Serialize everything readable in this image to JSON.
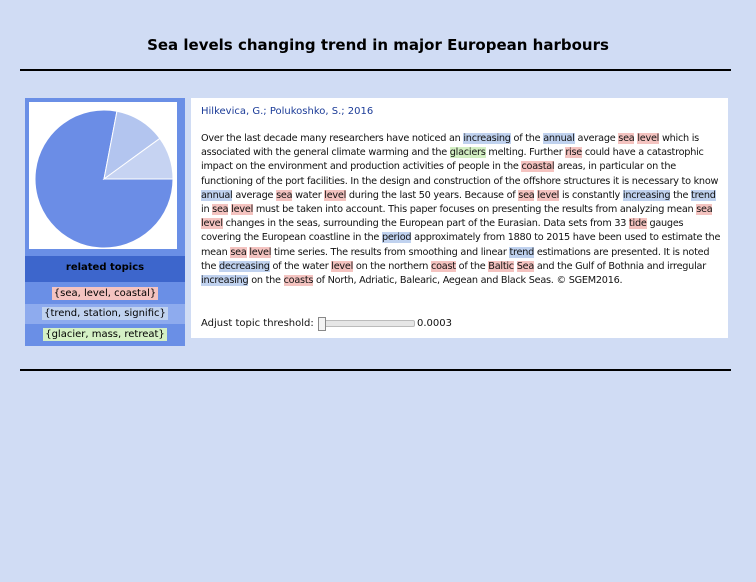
{
  "header": {
    "title": "Sea levels changing trend in major European harbours"
  },
  "sidebar": {
    "pie": {
      "colors": {
        "main": "#6b8de6",
        "mid": "#b3c5ef",
        "small": "#c6d3f2"
      },
      "slices": [
        0.78,
        0.12,
        0.1
      ]
    },
    "topics_label": "related topics",
    "topics": [
      {
        "label": "{sea, level, coastal}"
      },
      {
        "label": "{trend, station, signific}"
      },
      {
        "label": "{glacier, mass, retreat}"
      }
    ]
  },
  "paper": {
    "authors": "Hilkevica, G.; Polukoshko, S.; 2016",
    "abstract": [
      {
        "t": "Over the last decade many researchers have noticed an "
      },
      {
        "t": "increasing",
        "h": "b"
      },
      {
        "t": " of the "
      },
      {
        "t": "annual",
        "h": "b"
      },
      {
        "t": " average "
      },
      {
        "t": "sea",
        "h": "r"
      },
      {
        "t": " "
      },
      {
        "t": "level",
        "h": "r"
      },
      {
        "t": " which is associated with the general climate warming and the "
      },
      {
        "t": "glaciers",
        "h": "g"
      },
      {
        "t": " melting. Further "
      },
      {
        "t": "rise",
        "h": "r"
      },
      {
        "t": " could have a catastrophic impact on the environment and production activities of people in the "
      },
      {
        "t": "coastal",
        "h": "r"
      },
      {
        "t": " areas, in particular on the functioning of the port facilities. In the design and construction of the offshore structures it is necessary to know "
      },
      {
        "t": "annual",
        "h": "b"
      },
      {
        "t": " average "
      },
      {
        "t": "sea",
        "h": "r"
      },
      {
        "t": " water "
      },
      {
        "t": "level",
        "h": "r"
      },
      {
        "t": " during the last 50 years. Because of "
      },
      {
        "t": "sea",
        "h": "r"
      },
      {
        "t": " "
      },
      {
        "t": "level",
        "h": "r"
      },
      {
        "t": " is constantly "
      },
      {
        "t": "increasing",
        "h": "b"
      },
      {
        "t": " the "
      },
      {
        "t": "trend",
        "h": "b"
      },
      {
        "t": " in "
      },
      {
        "t": "sea",
        "h": "r"
      },
      {
        "t": " "
      },
      {
        "t": "level",
        "h": "r"
      },
      {
        "t": " must be taken into account. This paper focuses on presenting the results from analyzing mean "
      },
      {
        "t": "sea",
        "h": "r"
      },
      {
        "t": " "
      },
      {
        "t": "level",
        "h": "r"
      },
      {
        "t": " changes in the seas, surrounding the European part of the Eurasian. Data sets from 33 "
      },
      {
        "t": "tide",
        "h": "r"
      },
      {
        "t": " gauges covering the European coastline in the "
      },
      {
        "t": "period",
        "h": "b"
      },
      {
        "t": " approximately from 1880 to 2015 have been used to estimate the mean "
      },
      {
        "t": "sea",
        "h": "r"
      },
      {
        "t": " "
      },
      {
        "t": "level",
        "h": "r"
      },
      {
        "t": " time series. The results from smoothing and linear "
      },
      {
        "t": "trend",
        "h": "b"
      },
      {
        "t": " estimations are presented. It is noted the "
      },
      {
        "t": "decreasing",
        "h": "b"
      },
      {
        "t": " of the water "
      },
      {
        "t": "level",
        "h": "r"
      },
      {
        "t": " on the northern "
      },
      {
        "t": "coast",
        "h": "r"
      },
      {
        "t": " of the "
      },
      {
        "t": "Baltic",
        "h": "r"
      },
      {
        "t": " "
      },
      {
        "t": "Sea",
        "h": "r"
      },
      {
        "t": " and the Gulf of Bothnia and irregular "
      },
      {
        "t": "increasing",
        "h": "b"
      },
      {
        "t": " on the "
      },
      {
        "t": "coasts",
        "h": "r"
      },
      {
        "t": " of North, Adriatic, Balearic, Aegean and Black Seas. © SGEM2016."
      }
    ]
  },
  "threshold": {
    "label": "Adjust topic threshold:",
    "value": "0.0003",
    "slider_fraction": 0.0
  }
}
